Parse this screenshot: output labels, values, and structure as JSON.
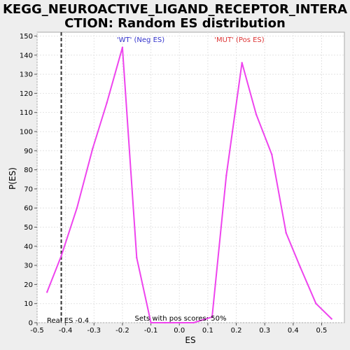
{
  "chart_data": {
    "type": "line",
    "title_line1": "KEGG_NEUROACTIVE_LIGAND_RECEPTOR_INTERA",
    "title_line2": "CTION: Random ES distribution",
    "xlabel": "ES",
    "ylabel": "P(ES)",
    "xlim": [
      -0.5,
      0.58
    ],
    "ylim": [
      0,
      152
    ],
    "x_ticks": [
      -0.5,
      -0.4,
      -0.3,
      -0.2,
      -0.1,
      0.0,
      0.1,
      0.2,
      0.3,
      0.4,
      0.5
    ],
    "x_tick_labels": [
      "-0.5",
      "-0.4",
      "-0.3",
      "-0.2",
      "-0.1",
      "0.0",
      "0.1",
      "0.2",
      "0.3",
      "0.4",
      "0.5"
    ],
    "y_ticks": [
      0,
      10,
      20,
      30,
      40,
      50,
      60,
      70,
      80,
      90,
      100,
      110,
      120,
      130,
      140,
      150
    ],
    "y_tick_labels": [
      "0",
      "10",
      "20",
      "30",
      "40",
      "50",
      "60",
      "70",
      "80",
      "90",
      "100",
      "110",
      "120",
      "130",
      "140",
      "150"
    ],
    "grid": true,
    "series": [
      {
        "color": "#ee44ee",
        "x": [
          -0.465,
          -0.415,
          -0.36,
          -0.305,
          -0.255,
          -0.2,
          -0.15,
          -0.1,
          -0.05,
          0.0,
          0.05,
          0.115,
          0.165,
          0.22,
          0.27,
          0.325,
          0.375,
          0.425,
          0.48,
          0.535
        ],
        "y": [
          16,
          35,
          60,
          91,
          115,
          144,
          34,
          0,
          0,
          0,
          0,
          3,
          77,
          136,
          109,
          88,
          47,
          29,
          10,
          2
        ]
      }
    ],
    "real_es": -0.415,
    "annotations": {
      "wt_label": "'WT' (Neg ES)",
      "mut_label": "'MUT' (Pos ES)",
      "real_es_label": "Real ES -0.4",
      "pos_scores_label": "Sets with pos scores: 50%"
    },
    "colors": {
      "line": "#ee44ee",
      "wt": "#3333cc",
      "mut": "#dd3333",
      "grid": "#e4e4e4",
      "real_es_line": "#333333"
    }
  }
}
